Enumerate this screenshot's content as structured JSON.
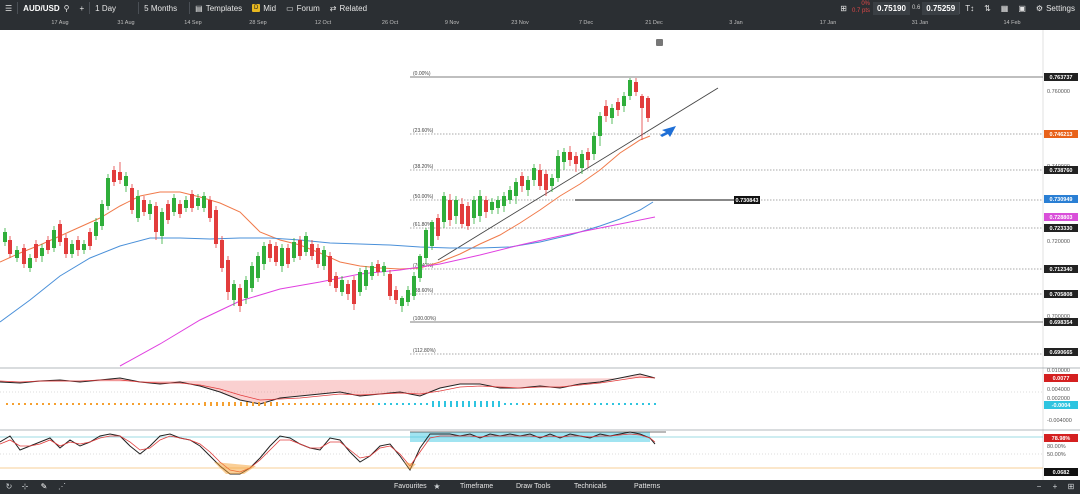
{
  "toolbar": {
    "symbol": "AUD/USD",
    "interval": "1 Day",
    "range": "5 Months",
    "templates_label": "Templates",
    "mid_badge": "D",
    "mid_label": "Mid",
    "forum_label": "Forum",
    "related_label": "Related",
    "change_pct": "0%",
    "change_pts": "0.7 pts",
    "sell_price": "0.75190",
    "spread": "0.6",
    "buy_price": "0.75259",
    "settings_label": "Settings"
  },
  "date_axis": [
    "17 Aug",
    "31 Aug",
    "14 Sep",
    "28 Sep",
    "12 Oct",
    "26 Oct",
    "9 Nov",
    "23 Nov",
    "7 Dec",
    "21 Dec",
    "3 Jan",
    "17 Jan",
    "31 Jan",
    "14 Feb"
  ],
  "price_axis": {
    "labels": [
      "0.760000",
      "0.740000",
      "0.720000",
      "0.700000"
    ],
    "tags": [
      {
        "value": "0.763737",
        "color": "#222222"
      },
      {
        "value": "0.746213",
        "color": "#e8621a"
      },
      {
        "value": "0.738760",
        "color": "#222222"
      },
      {
        "value": "0.730949",
        "color": "#2a7fd4"
      },
      {
        "value": "0.728803",
        "color": "#d94fd9"
      },
      {
        "value": "0.723330",
        "color": "#222222"
      },
      {
        "value": "0.712340",
        "color": "#222222"
      },
      {
        "value": "0.705808",
        "color": "#222222"
      },
      {
        "value": "0.698354",
        "color": "#222222"
      },
      {
        "value": "0.690665",
        "color": "#222222"
      }
    ],
    "hline_label": "0.730843"
  },
  "fibonacci": [
    "(0.00%)",
    "(23.60%)",
    "(38.20%)",
    "(50.00%)",
    "(61.80%)",
    "(76.40%)",
    "(88.60%)",
    "(100.00%)",
    "(112.80%)"
  ],
  "macd": {
    "labels": [
      "0.010000",
      "0.004000",
      "0.002000",
      "-0.004000"
    ],
    "tag_red": "0.0077",
    "tag_blue": "-0.0004"
  },
  "stoch": {
    "labels": [
      "80.00%",
      "50.00%"
    ],
    "tag_red": "78.98%",
    "tag_black": "0.0682"
  },
  "bottom": {
    "favourites": "Favourites",
    "timeframe": "Timeframe",
    "draw_tools": "Draw Tools",
    "technicals": "Technicals",
    "patterns": "Patterns"
  },
  "chart_data": {
    "type": "candlestick",
    "title": "AUD/USD",
    "ylim": [
      0.686,
      0.767
    ],
    "indicators": [
      "EMA 20 (orange)",
      "SMA 50 (blue)",
      "SMA 100 (magenta)",
      "Fibonacci retracement",
      "Trendline",
      "MACD",
      "Stochastic"
    ],
    "fib_high": 0.763737,
    "fib_low": 0.698354
  }
}
